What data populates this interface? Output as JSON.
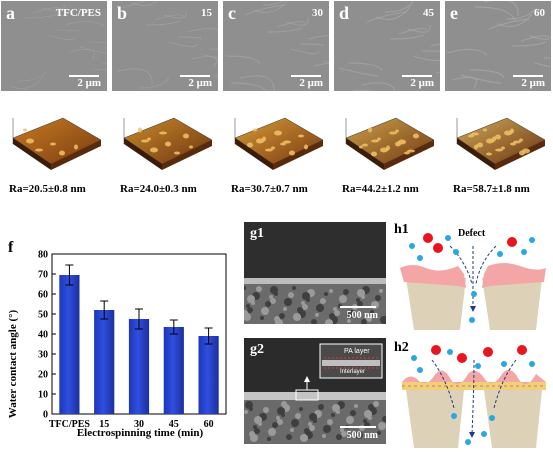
{
  "sem_panels": [
    {
      "letter": "a",
      "label": "TFC/PES",
      "scale": "2 μm",
      "ra": "Ra=20.5±0.8 nm"
    },
    {
      "letter": "b",
      "label": "15",
      "scale": "2 μm",
      "ra": "Ra=24.0±0.3 nm"
    },
    {
      "letter": "c",
      "label": "30",
      "scale": "2 μm",
      "ra": "Ra=30.7±0.7 nm"
    },
    {
      "letter": "d",
      "label": "45",
      "scale": "2 μm",
      "ra": "Ra=44.2±1.2 nm"
    },
    {
      "letter": "e",
      "label": "60",
      "scale": "2 μm",
      "ra": "Ra=58.7±1.8 nm"
    }
  ],
  "chart_data": {
    "type": "bar",
    "panel_letter": "f",
    "categories": [
      "TFC/PES",
      "15",
      "30",
      "45",
      "60"
    ],
    "values": [
      69.5,
      52.0,
      47.5,
      43.5,
      39.0
    ],
    "errors": [
      5.0,
      4.5,
      5.0,
      3.5,
      4.0
    ],
    "xlabel": "Electrospinning time (min)",
    "ylabel": "Water contact angle (°)",
    "ylim": [
      0,
      80
    ],
    "yticks": [
      "0",
      "10",
      "20",
      "30",
      "40",
      "50",
      "60",
      "70",
      "80"
    ],
    "bar_color": "#2f4fe0"
  },
  "cross_sections": [
    {
      "label": "g1",
      "scale": "500 nm"
    },
    {
      "label": "g2",
      "scale": "500 nm",
      "inset_text": "PA layer",
      "inset_sub": "Interlayer"
    }
  ],
  "schematic": {
    "h1_label": "h1",
    "h2_label": "h2",
    "defect_label": "Defect",
    "colors": {
      "red": "#e8141e",
      "blue": "#29a8e0",
      "pink": "#f4a6a6",
      "support": "#ddd2b8"
    }
  }
}
